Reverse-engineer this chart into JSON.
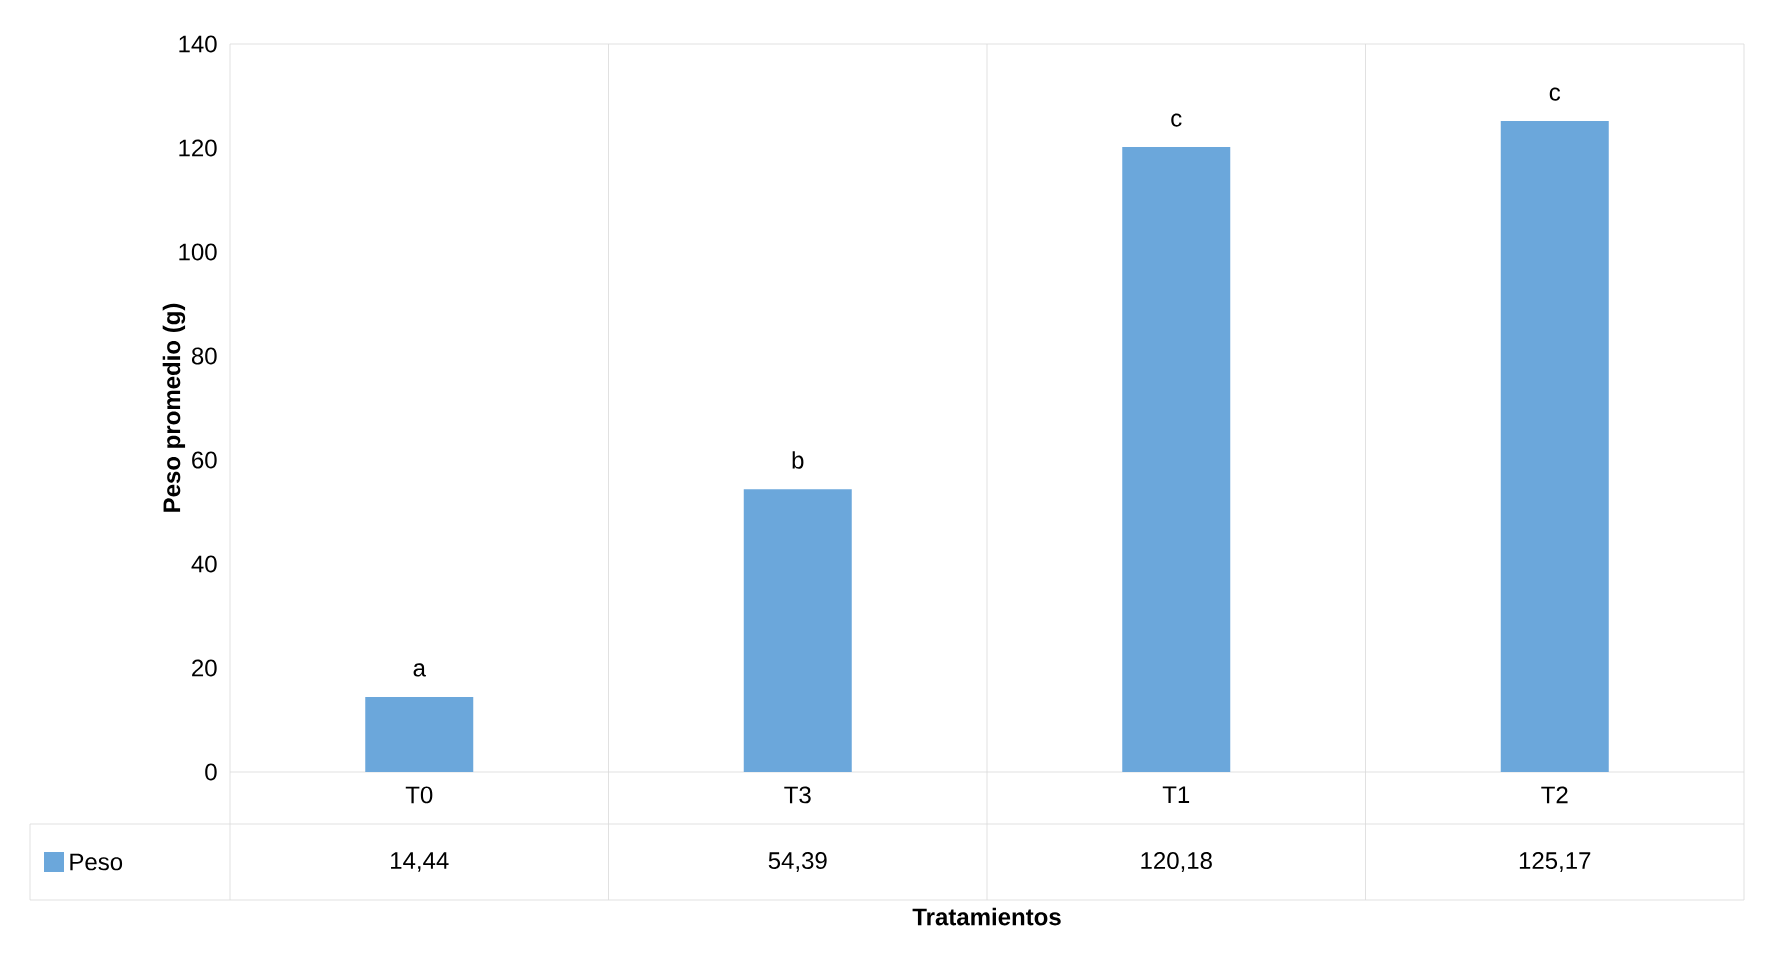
{
  "chart_data": {
    "type": "bar",
    "xlabel": "Tratamientos",
    "ylabel": "Peso promedio (g)",
    "categories": [
      "T0",
      "T3",
      "T1",
      "T2"
    ],
    "series": [
      {
        "name": "Peso",
        "color": "#6ba7db",
        "values": [
          14.44,
          54.39,
          120.18,
          125.17
        ],
        "value_labels": [
          "14,44",
          "54,39",
          "120,18",
          "125,17"
        ]
      }
    ],
    "ylim": [
      0,
      140
    ],
    "yticks": [
      0,
      20,
      40,
      60,
      80,
      100,
      120,
      140
    ],
    "grid": false,
    "legend": "bottom left",
    "annotations": [
      {
        "text": "a",
        "x": "T0",
        "y": 14.44
      },
      {
        "text": "b",
        "x": "T3",
        "y": 54.39
      },
      {
        "text": "c",
        "x": "T1",
        "y": 120.18
      },
      {
        "text": "c",
        "x": "T2",
        "y": 125.17
      }
    ]
  }
}
